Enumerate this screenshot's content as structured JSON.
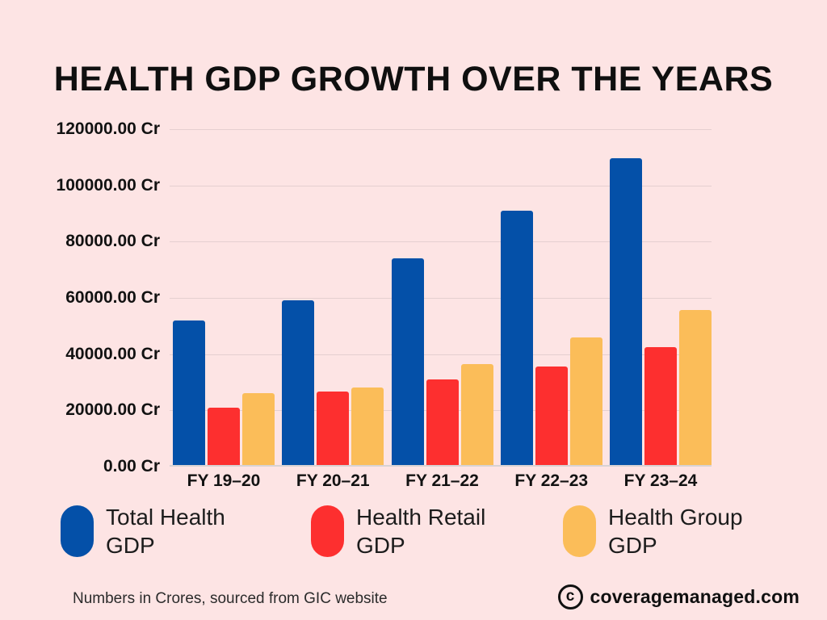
{
  "page": {
    "background_color": "#fde4e4",
    "text_color": "#0f0f0f"
  },
  "title": "HEALTH GDP GROWTH OVER THE YEARS",
  "chart_data": {
    "type": "bar",
    "title": "HEALTH GDP GROWTH OVER THE YEARS",
    "categories": [
      "FY 19–20",
      "FY 20–21",
      "FY 21–22",
      "FY 22–23",
      "FY 23–24"
    ],
    "series": [
      {
        "name": "Total Health GDP",
        "color": "#0450a8",
        "values": [
          51500,
          58500,
          73500,
          90500,
          109000
        ]
      },
      {
        "name": "Health Retail GDP",
        "color": "#fd2f2f",
        "values": [
          20500,
          26000,
          30500,
          35000,
          42000
        ]
      },
      {
        "name": "Health Group GDP",
        "color": "#fbbd59",
        "values": [
          25500,
          27500,
          36000,
          45500,
          55000
        ]
      }
    ],
    "xlabel": "",
    "ylabel": "",
    "ylim": [
      0,
      120000
    ],
    "ytick_step": 20000,
    "ytick_format": "{value}.00 Cr",
    "grid": true,
    "gridline_color": "#e5cfd0",
    "legend_position": "bottom"
  },
  "legend": {
    "items": [
      {
        "label": "Total Health\nGDP",
        "color": "#0450a8"
      },
      {
        "label": "Health Retail\nGDP",
        "color": "#fd2f2f"
      },
      {
        "label": "Health Group\nGDP",
        "color": "#fbbd59"
      }
    ]
  },
  "footer": {
    "note": "Numbers in Crores, sourced from GIC website",
    "copyright_letter": "c",
    "brand": "coveragemanaged.com"
  }
}
